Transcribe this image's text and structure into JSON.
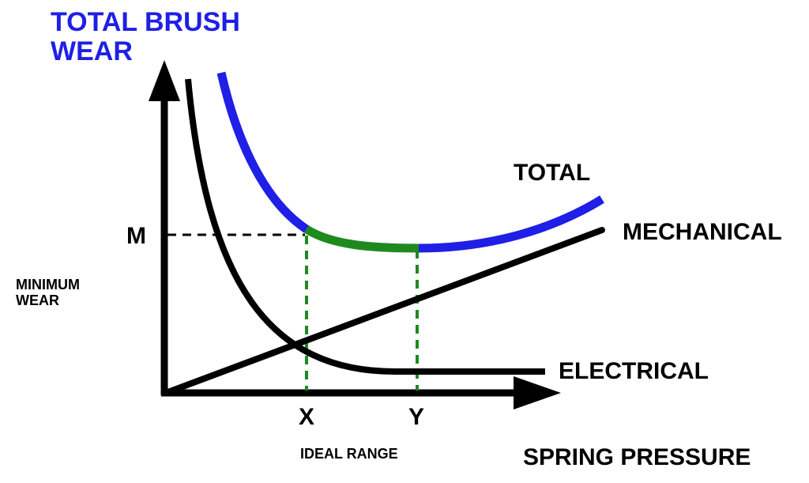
{
  "y_axis_label_lines": [
    "TOTAL BRUSH",
    "WEAR"
  ],
  "x_axis_label": "SPRING PRESSURE",
  "curves": {
    "total": "TOTAL",
    "mechanical": "MECHANICAL",
    "electrical": "ELECTRICAL"
  },
  "markers": {
    "m": "M",
    "x": "X",
    "y": "Y"
  },
  "minimum_wear_lines": [
    "MINIMUM",
    "WEAR"
  ],
  "ideal_range": "IDEAL RANGE",
  "colors": {
    "total_curve": "#1f1fe6",
    "ideal_segment": "#1e8a1e",
    "axes": "#000000",
    "guide_lines_x_y": "#1e8a1e",
    "guide_line_m": "#000000",
    "y_axis_label": "#1f1fe6"
  }
}
